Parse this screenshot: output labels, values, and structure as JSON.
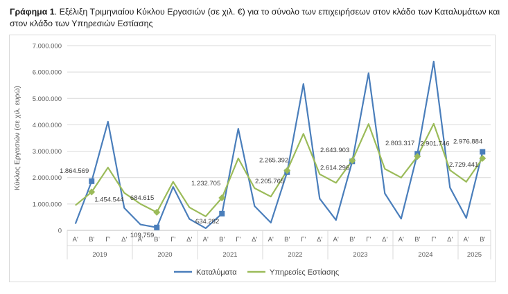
{
  "caption": {
    "prefix": "Γράφημα 1",
    "text": ". Εξέλιξη Τριμηνιαίου Κύκλου Εργασιών (σε χιλ. €) για το σύνολο των επιχειρήσεων στον κλάδο των Καταλυμάτων και στον κλάδο των Υπηρεσιών Εστίασης"
  },
  "chart_data": {
    "type": "line",
    "ylabel": "Κύκλος Εργασιών (σε χιλ. ευρώ)",
    "ylim": [
      0,
      7000000
    ],
    "yticks": [
      {
        "value": 0,
        "label": "0"
      },
      {
        "value": 1000000,
        "label": "1.000.000"
      },
      {
        "value": 2000000,
        "label": "2.000.000"
      },
      {
        "value": 3000000,
        "label": "3.000.000"
      },
      {
        "value": 4000000,
        "label": "4.000.000"
      },
      {
        "value": 5000000,
        "label": "5.000.000"
      },
      {
        "value": 6000000,
        "label": "6.000.000"
      },
      {
        "value": 7000000,
        "label": "7.000.000"
      }
    ],
    "grid": true,
    "legend_position": "bottom",
    "categories": [
      "Α'",
      "Β'",
      "Γ'",
      "Δ'",
      "Α'",
      "Β'",
      "Γ'",
      "Δ'",
      "Α'",
      "Β'",
      "Γ'",
      "Δ'",
      "Α'",
      "Β'",
      "Γ'",
      "Δ'",
      "Α'",
      "Β'",
      "Γ'",
      "Δ'",
      "Α'",
      "Β'",
      "Γ'",
      "Δ'",
      "Α'",
      "Β'"
    ],
    "years": [
      {
        "label": "2019",
        "count": 4
      },
      {
        "label": "2020",
        "count": 4
      },
      {
        "label": "2021",
        "count": 4
      },
      {
        "label": "2022",
        "count": 4
      },
      {
        "label": "2023",
        "count": 4
      },
      {
        "label": "2024",
        "count": 4
      },
      {
        "label": "2025",
        "count": 2
      }
    ],
    "series": [
      {
        "name": "Καταλύματα",
        "color": "#4a7ebb",
        "values": [
          250000,
          1864569,
          4120000,
          850000,
          220000,
          109759,
          1650000,
          430000,
          80000,
          634282,
          3850000,
          920000,
          290000,
          2205765,
          5550000,
          1200000,
          390000,
          2614296,
          5960000,
          1400000,
          440000,
          2901746,
          6400000,
          1620000,
          470000,
          2976884
        ],
        "labels": [
          {
            "index": 1,
            "text": "1.864.569"
          },
          {
            "index": 5,
            "text": "109.759"
          },
          {
            "index": 9,
            "text": "634.282"
          },
          {
            "index": 13,
            "text": "2.205.765"
          },
          {
            "index": 17,
            "text": "2.614.296"
          },
          {
            "index": 21,
            "text": "2.901.746"
          },
          {
            "index": 25,
            "text": "2.976.884"
          }
        ]
      },
      {
        "name": "Υπηρεσίες Εστίασης",
        "color": "#9bbb59",
        "values": [
          950000,
          1454544,
          2380000,
          1420000,
          1000000,
          684615,
          1840000,
          870000,
          530000,
          1232705,
          2730000,
          1600000,
          1280000,
          2265392,
          3660000,
          2130000,
          1800000,
          2643903,
          4030000,
          2330000,
          2000000,
          2803317,
          4040000,
          2280000,
          1840000,
          2729441
        ],
        "labels": [
          {
            "index": 1,
            "text": "1.454.544"
          },
          {
            "index": 5,
            "text": "684.615"
          },
          {
            "index": 9,
            "text": "1.232.705"
          },
          {
            "index": 13,
            "text": "2.265.392"
          },
          {
            "index": 17,
            "text": "2.643.903"
          },
          {
            "index": 21,
            "text": "2.803.317"
          },
          {
            "index": 25,
            "text": "2.729.441"
          }
        ]
      }
    ]
  }
}
